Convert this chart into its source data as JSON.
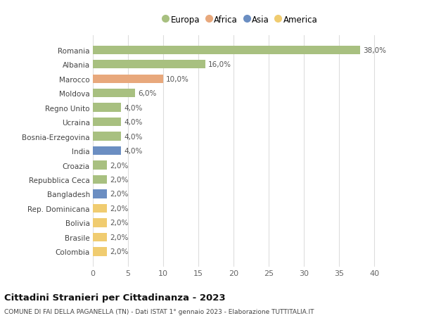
{
  "categories": [
    "Romania",
    "Albania",
    "Marocco",
    "Moldova",
    "Regno Unito",
    "Ucraina",
    "Bosnia-Erzegovina",
    "India",
    "Croazia",
    "Repubblica Ceca",
    "Bangladesh",
    "Rep. Dominicana",
    "Bolivia",
    "Brasile",
    "Colombia"
  ],
  "values": [
    38.0,
    16.0,
    10.0,
    6.0,
    4.0,
    4.0,
    4.0,
    4.0,
    2.0,
    2.0,
    2.0,
    2.0,
    2.0,
    2.0,
    2.0
  ],
  "continents": [
    "Europa",
    "Europa",
    "Africa",
    "Europa",
    "Europa",
    "Europa",
    "Europa",
    "Asia",
    "Europa",
    "Europa",
    "Asia",
    "America",
    "America",
    "America",
    "America"
  ],
  "colors": {
    "Europa": "#a8c080",
    "Africa": "#e8a87c",
    "Asia": "#6b8ec2",
    "America": "#f0cc70"
  },
  "legend_order": [
    "Europa",
    "Africa",
    "Asia",
    "America"
  ],
  "title": "Cittadini Stranieri per Cittadinanza - 2023",
  "subtitle": "COMUNE DI FAI DELLA PAGANELLA (TN) - Dati ISTAT 1° gennaio 2023 - Elaborazione TUTTITALIA.IT",
  "xlim": [
    0,
    42
  ],
  "xticks": [
    0,
    5,
    10,
    15,
    20,
    25,
    30,
    35,
    40
  ],
  "background_color": "#ffffff",
  "grid_color": "#dddddd"
}
